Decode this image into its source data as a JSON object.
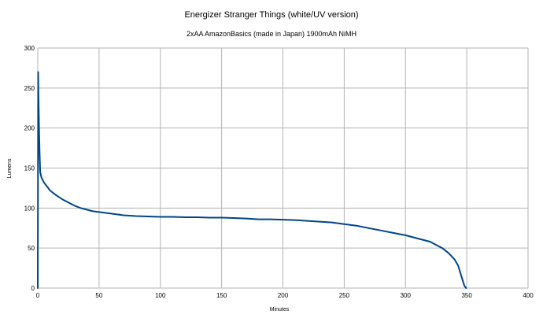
{
  "chart_data": {
    "type": "line",
    "title": "Energizer Stranger Things (white/UV version)",
    "subtitle": "2xAA AmazonBasics (made in Japan) 1900mAh NiMH",
    "xlabel": "Minutes",
    "ylabel": "Lumens",
    "xlim": [
      0,
      400
    ],
    "ylim": [
      0,
      300
    ],
    "xticks": [
      "0",
      "50",
      "100",
      "150",
      "200",
      "250",
      "300",
      "350",
      "400"
    ],
    "yticks": [
      "0",
      "50",
      "100",
      "150",
      "200",
      "250",
      "300"
    ],
    "grid": true,
    "legend": "none",
    "line_color": "#004586",
    "series": [
      {
        "x": [
          0,
          0.3,
          0.6,
          1,
          1.5,
          2,
          3,
          5,
          8,
          10,
          15,
          20,
          25,
          30,
          35,
          40,
          45,
          50,
          60,
          70,
          80,
          90,
          100,
          110,
          120,
          130,
          140,
          150,
          160,
          170,
          180,
          190,
          200,
          210,
          220,
          230,
          240,
          250,
          260,
          270,
          280,
          290,
          300,
          310,
          320,
          330,
          335,
          340,
          343,
          345,
          347,
          348,
          349,
          349.5
        ],
        "y": [
          0,
          270,
          240,
          200,
          170,
          145,
          138,
          132,
          126,
          122,
          116,
          111,
          107,
          103,
          100,
          98,
          96,
          95,
          93,
          91,
          90,
          89.5,
          89,
          89,
          88.5,
          88.5,
          88,
          88,
          87.5,
          87,
          86,
          86,
          85.5,
          85,
          84,
          83,
          82,
          80,
          78,
          75,
          72,
          69,
          66,
          62,
          58,
          50,
          44,
          36,
          28,
          18,
          8,
          3,
          1,
          0
        ]
      }
    ]
  }
}
